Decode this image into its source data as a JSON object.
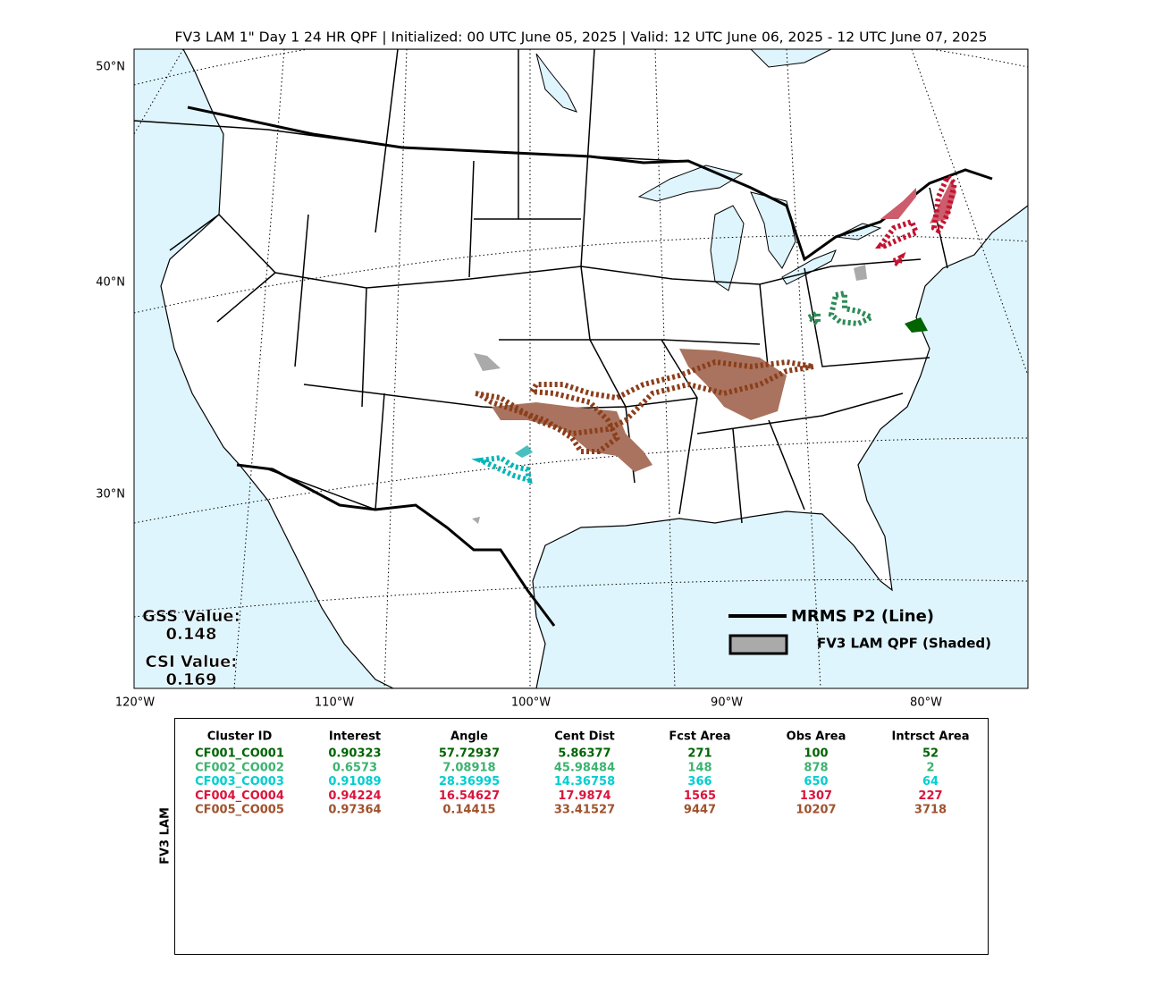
{
  "title": "FV3 LAM 1\" Day 1 24 HR QPF | Initialized: 00 UTC June 05, 2025 | Valid: 12 UTC June 06, 2025 - 12 UTC June 07, 2025",
  "map": {
    "lat_labels": [
      "50°N",
      "40°N",
      "30°N"
    ],
    "lon_labels": [
      "120°W",
      "110°W",
      "100°W",
      "90°W",
      "80°W"
    ],
    "stats": {
      "gss_label": "GSS Value:",
      "gss_value": "0.148",
      "csi_label": "CSI Value:",
      "csi_value": "0.169"
    },
    "legend": {
      "line": "MRMS P2 (Line)",
      "shaded": "FV3 LAM QPF (Shaded)"
    }
  },
  "table": {
    "side_label": "FV3 LAM",
    "header": [
      "Cluster ID",
      "Interest",
      "Angle",
      "Cent Dist",
      "Fcst Area",
      "Obs Area",
      "Intrsct Area"
    ],
    "rows": [
      {
        "color": "#006400",
        "cells": [
          "CF001_CO001",
          "0.90323",
          "57.72937",
          "5.86377",
          "271",
          "100",
          "52"
        ]
      },
      {
        "color": "#3cb371",
        "cells": [
          "CF002_CO002",
          "0.6573",
          "7.08918",
          "45.98484",
          "148",
          "878",
          "2"
        ]
      },
      {
        "color": "#00ced1",
        "cells": [
          "CF003_CO003",
          "0.91089",
          "28.36995",
          "14.36758",
          "366",
          "650",
          "64"
        ]
      },
      {
        "color": "#dc143c",
        "cells": [
          "CF004_CO004",
          "0.94224",
          "16.54627",
          "17.9874",
          "1565",
          "1307",
          "227"
        ]
      },
      {
        "color": "#a0522d",
        "cells": [
          "CF005_CO005",
          "0.97364",
          "0.14415",
          "33.41527",
          "9447",
          "10207",
          "3718"
        ]
      }
    ]
  }
}
